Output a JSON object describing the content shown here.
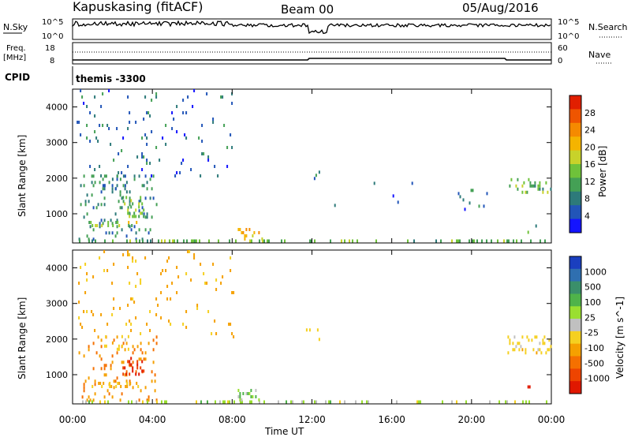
{
  "header": {
    "site": "Kapuskasing (fitACF)",
    "beam": "Beam 00",
    "date": "05/Aug/2016"
  },
  "top_panels": {
    "nsky_label": "N.Sky",
    "nsearch_label": "N.Search",
    "noise_ticks": [
      "10^5",
      "10^0"
    ],
    "freq_label": "Freq.",
    "freq_unit": "[MHz]",
    "freq_ticks": [
      "18",
      "8"
    ],
    "nave_label": "Nave",
    "nave_ticks": [
      "60",
      "0"
    ],
    "cpid_label": "CPID",
    "cpid_value": "themis -3300"
  },
  "x_axis": {
    "title": "Time UT",
    "ticks": [
      "00:00",
      "04:00",
      "08:00",
      "12:00",
      "16:00",
      "20:00",
      "00:00"
    ],
    "range_hours": [
      0,
      24
    ]
  },
  "chart_data": [
    {
      "type": "heatmap",
      "name": "power",
      "xlabel": "Time UT",
      "ylabel": "Slant Range [km]",
      "xlim": [
        0,
        24
      ],
      "ylim": [
        180,
        4500
      ],
      "y_ticks": [
        1000,
        2000,
        3000,
        4000
      ],
      "colorbar": {
        "label": "Power [dB]",
        "ticks": [
          "4",
          "8",
          "12",
          "16",
          "20",
          "24",
          "28"
        ],
        "range": [
          0,
          30
        ],
        "colors": [
          "#1414ff",
          "#2255b8",
          "#2d7a7a",
          "#44a055",
          "#6fc23a",
          "#c8d22a",
          "#f5b400",
          "#f58a00",
          "#ef5500",
          "#e11f00"
        ]
      },
      "clusters": [
        {
          "t": [
            0.3,
            4.2
          ],
          "r": [
            300,
            2100
          ],
          "level": 8,
          "density": "medium"
        },
        {
          "t": [
            1.5,
            2.8
          ],
          "r": [
            1600,
            2100
          ],
          "level": 8,
          "density": "medium"
        },
        {
          "t": [
            2.5,
            3.6
          ],
          "r": [
            900,
            1500
          ],
          "level": 14,
          "density": "high"
        },
        {
          "t": [
            0.8,
            3.4
          ],
          "r": [
            650,
            800
          ],
          "level": 15,
          "density": "high"
        },
        {
          "t": [
            0,
            24
          ],
          "r": [
            200,
            280
          ],
          "level": 12,
          "density": "high"
        },
        {
          "t": [
            8.2,
            9.5
          ],
          "r": [
            300,
            600
          ],
          "level": 20,
          "density": "high"
        },
        {
          "t": [
            11.7,
            12.5
          ],
          "r": [
            1950,
            2300
          ],
          "level": 6,
          "density": "medium"
        },
        {
          "t": [
            12.8,
            17.5
          ],
          "r": [
            1200,
            1900
          ],
          "level": 6,
          "density": "low"
        },
        {
          "t": [
            19.0,
            21.0
          ],
          "r": [
            1100,
            1700
          ],
          "level": 6,
          "density": "low"
        },
        {
          "t": [
            21.8,
            24
          ],
          "r": [
            1600,
            2000
          ],
          "level": 12,
          "density": "high"
        },
        {
          "t": [
            22.8,
            23.3
          ],
          "r": [
            400,
            700
          ],
          "level": 10,
          "density": "medium"
        },
        {
          "t": [
            0.2,
            8.1
          ],
          "r": [
            2100,
            4500
          ],
          "level": 6,
          "density": "low"
        }
      ]
    },
    {
      "type": "heatmap",
      "name": "velocity",
      "xlabel": "Time UT",
      "ylabel": "Slant Range [km]",
      "xlim": [
        0,
        24
      ],
      "ylim": [
        180,
        4500
      ],
      "y_ticks": [
        1000,
        2000,
        3000,
        4000
      ],
      "colorbar": {
        "label": "Velocity [m s^-1]",
        "ticks": [
          "1000",
          "500",
          "100",
          "25",
          "-25",
          "-100",
          "-500",
          "-1000"
        ],
        "colors": [
          "#1a3fbf",
          "#2f6fb0",
          "#3a8f6a",
          "#4fb34a",
          "#9adf30",
          "#c0c0c0",
          "#f5d020",
          "#f5a000",
          "#f57000",
          "#ee4400",
          "#e01800"
        ]
      },
      "clusters": [
        {
          "t": [
            0.3,
            4.2
          ],
          "r": [
            300,
            2100
          ],
          "level": -100,
          "density": "medium"
        },
        {
          "t": [
            1.5,
            2.8
          ],
          "r": [
            1700,
            2200
          ],
          "level": 0,
          "density": "medium"
        },
        {
          "t": [
            2.5,
            3.6
          ],
          "r": [
            1000,
            1500
          ],
          "level": -500,
          "density": "high"
        },
        {
          "t": [
            0.8,
            3.4
          ],
          "r": [
            650,
            800
          ],
          "level": -50,
          "density": "high"
        },
        {
          "t": [
            0,
            24
          ],
          "r": [
            200,
            280
          ],
          "level": 60,
          "density": "high"
        },
        {
          "t": [
            8.2,
            9.5
          ],
          "r": [
            300,
            600
          ],
          "level": 100,
          "density": "high"
        },
        {
          "t": [
            11.7,
            12.5
          ],
          "r": [
            1950,
            2300
          ],
          "level": 0,
          "density": "medium"
        },
        {
          "t": [
            21.8,
            24
          ],
          "r": [
            1600,
            2100
          ],
          "level": 0,
          "density": "high"
        },
        {
          "t": [
            22.8,
            23.3
          ],
          "r": [
            400,
            700
          ],
          "level": -500,
          "density": "medium"
        },
        {
          "t": [
            0.2,
            8.1
          ],
          "r": [
            2100,
            4500
          ],
          "level": -50,
          "density": "low"
        }
      ]
    }
  ]
}
